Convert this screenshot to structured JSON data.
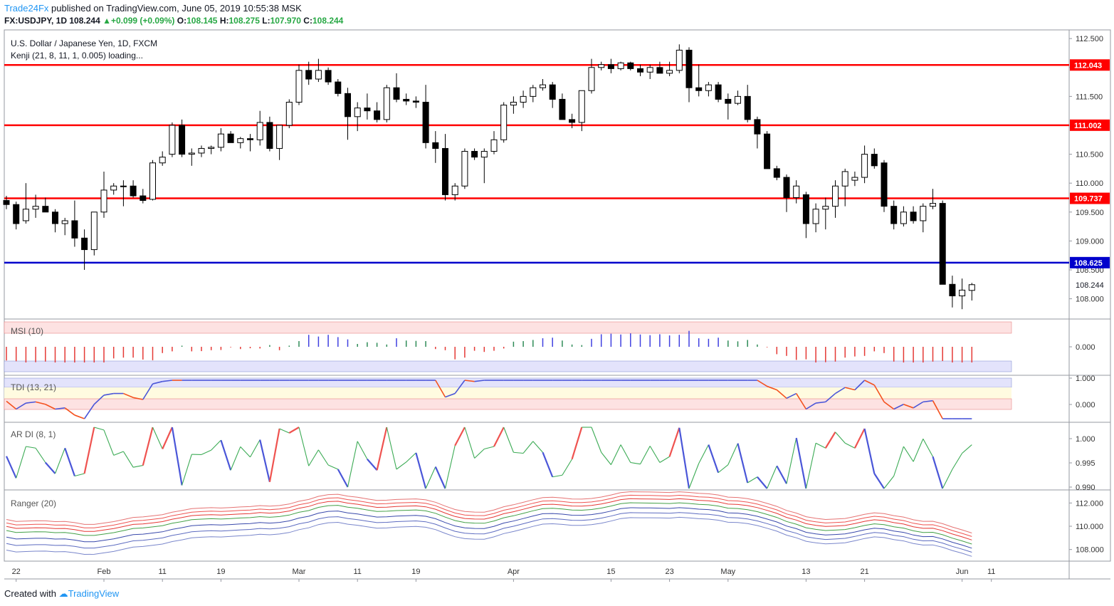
{
  "header": {
    "publisher": "Trade24Fx",
    "published_text": "published on TradingView.com, June 05, 2019 10:55:38 MSK",
    "symbol": "FX:USDJPY, 1D",
    "last": "108.244",
    "change": "+0.099 (+0.09%)",
    "open_label": "O:",
    "open": "108.145",
    "high_label": "H:",
    "high": "108.275",
    "low_label": "L:",
    "low": "107.970",
    "close_label": "C:",
    "close": "108.244"
  },
  "footer": {
    "created_with": "Created with",
    "brand": "TradingView"
  },
  "colors": {
    "bull": "#ffffff",
    "bear": "#000000",
    "resistance": "#ff0000",
    "support": "#0000cc",
    "accent": "#2196f3"
  },
  "chart_data": [
    {
      "type": "candlestick",
      "title": "U.S. Dollar / Japanese Yen, 1D, FXCM",
      "subtitle": "Kenji (21, 8, 11, 1, 0.005) loading...",
      "x_tick_labels": [
        {
          "i": 1,
          "label": "22"
        },
        {
          "i": 10,
          "label": "Feb"
        },
        {
          "i": 16,
          "label": "11"
        },
        {
          "i": 22,
          "label": "19"
        },
        {
          "i": 30,
          "label": "Mar"
        },
        {
          "i": 36,
          "label": "11"
        },
        {
          "i": 42,
          "label": "19"
        },
        {
          "i": 52,
          "label": "Apr"
        },
        {
          "i": 62,
          "label": "15"
        },
        {
          "i": 68,
          "label": "23"
        },
        {
          "i": 74,
          "label": "May"
        },
        {
          "i": 82,
          "label": "13"
        },
        {
          "i": 88,
          "label": "21"
        },
        {
          "i": 98,
          "label": "Jun"
        },
        {
          "i": 101,
          "label": "11"
        }
      ],
      "y_ticks": [
        "108.000",
        "108.500",
        "109.000",
        "109.500",
        "110.000",
        "110.500",
        "111.000",
        "111.500",
        "112.000",
        "112.500"
      ],
      "ylim": [
        107.65,
        112.65
      ],
      "levels": [
        {
          "value": 112.043,
          "label": "112.043",
          "color": "#ff0000"
        },
        {
          "value": 111.002,
          "label": "111.002",
          "color": "#ff0000"
        },
        {
          "value": 109.737,
          "label": "109.737",
          "color": "#ff0000"
        },
        {
          "value": 108.625,
          "label": "108.625",
          "color": "#0000cc"
        }
      ],
      "last_price_label": "108.244",
      "ohlc": [
        [
          109.7,
          109.78,
          109.55,
          109.63
        ],
        [
          109.63,
          109.68,
          109.2,
          109.3
        ],
        [
          109.35,
          110.0,
          109.3,
          109.55
        ],
        [
          109.55,
          109.8,
          109.4,
          109.6
        ],
        [
          109.6,
          109.75,
          109.5,
          109.5
        ],
        [
          109.5,
          109.55,
          109.15,
          109.3
        ],
        [
          109.3,
          109.4,
          109.1,
          109.35
        ],
        [
          109.35,
          109.7,
          108.9,
          109.05
        ],
        [
          109.05,
          109.2,
          108.5,
          108.85
        ],
        [
          108.85,
          109.45,
          108.75,
          109.5
        ],
        [
          109.5,
          110.2,
          109.4,
          109.88
        ],
        [
          109.88,
          110.0,
          109.8,
          109.95
        ],
        [
          109.95,
          110.05,
          109.6,
          109.95
        ],
        [
          109.95,
          110.05,
          109.75,
          109.78
        ],
        [
          109.78,
          109.9,
          109.65,
          109.7
        ],
        [
          109.72,
          110.4,
          109.7,
          110.35
        ],
        [
          110.35,
          110.55,
          110.3,
          110.45
        ],
        [
          110.5,
          111.05,
          110.45,
          111.0
        ],
        [
          111.0,
          111.1,
          110.45,
          110.5
        ],
        [
          110.5,
          110.6,
          110.3,
          110.52
        ],
        [
          110.52,
          110.65,
          110.45,
          110.6
        ],
        [
          110.6,
          110.65,
          110.5,
          110.62
        ],
        [
          110.62,
          110.95,
          110.55,
          110.85
        ],
        [
          110.85,
          110.9,
          110.7,
          110.7
        ],
        [
          110.7,
          110.8,
          110.6,
          110.77
        ],
        [
          110.77,
          110.85,
          110.55,
          110.75
        ],
        [
          110.75,
          111.25,
          110.65,
          111.05
        ],
        [
          111.05,
          111.15,
          110.55,
          110.6
        ],
        [
          110.6,
          111.0,
          110.4,
          111.0
        ],
        [
          111.0,
          111.45,
          110.95,
          111.4
        ],
        [
          111.4,
          112.05,
          111.35,
          111.95
        ],
        [
          111.95,
          112.1,
          111.7,
          111.8
        ],
        [
          111.8,
          112.15,
          111.75,
          111.95
        ],
        [
          111.95,
          112.0,
          111.7,
          111.75
        ],
        [
          111.75,
          111.8,
          111.5,
          111.55
        ],
        [
          111.55,
          111.65,
          110.75,
          111.15
        ],
        [
          111.15,
          111.4,
          110.9,
          111.3
        ],
        [
          111.3,
          111.55,
          111.1,
          111.25
        ],
        [
          111.25,
          111.4,
          111.05,
          111.1
        ],
        [
          111.1,
          111.7,
          111.05,
          111.65
        ],
        [
          111.65,
          111.9,
          111.4,
          111.45
        ],
        [
          111.45,
          111.55,
          111.35,
          111.42
        ],
        [
          111.42,
          111.5,
          111.3,
          111.4
        ],
        [
          111.4,
          111.7,
          110.6,
          110.7
        ],
        [
          110.7,
          110.9,
          110.35,
          110.6
        ],
        [
          110.6,
          110.85,
          109.7,
          109.8
        ],
        [
          109.8,
          110.0,
          109.7,
          109.95
        ],
        [
          109.95,
          110.6,
          109.9,
          110.55
        ],
        [
          110.55,
          110.6,
          110.4,
          110.45
        ],
        [
          110.45,
          110.6,
          110.0,
          110.55
        ],
        [
          110.55,
          110.9,
          110.5,
          110.75
        ],
        [
          110.75,
          111.4,
          110.7,
          111.35
        ],
        [
          111.35,
          111.5,
          111.2,
          111.4
        ],
        [
          111.4,
          111.6,
          111.3,
          111.5
        ],
        [
          111.5,
          111.7,
          111.4,
          111.65
        ],
        [
          111.65,
          111.8,
          111.6,
          111.7
        ],
        [
          111.7,
          111.75,
          111.3,
          111.45
        ],
        [
          111.45,
          111.55,
          111.1,
          111.1
        ],
        [
          111.1,
          111.2,
          110.95,
          111.05
        ],
        [
          111.05,
          111.6,
          110.9,
          111.6
        ],
        [
          111.6,
          112.15,
          111.55,
          112.0
        ],
        [
          112.0,
          112.1,
          111.95,
          112.05
        ],
        [
          112.05,
          112.15,
          111.9,
          111.98
        ],
        [
          111.98,
          112.1,
          111.95,
          112.08
        ],
        [
          112.08,
          112.1,
          111.95,
          111.98
        ],
        [
          111.98,
          112.05,
          111.85,
          111.92
        ],
        [
          111.92,
          112.05,
          111.8,
          112.0
        ],
        [
          112.0,
          112.1,
          111.9,
          111.9
        ],
        [
          111.9,
          112.1,
          111.85,
          111.95
        ],
        [
          111.95,
          112.4,
          111.9,
          112.3
        ],
        [
          112.3,
          112.35,
          111.4,
          111.65
        ],
        [
          111.65,
          112.05,
          111.5,
          111.6
        ],
        [
          111.6,
          111.75,
          111.5,
          111.7
        ],
        [
          111.7,
          111.75,
          111.4,
          111.45
        ],
        [
          111.45,
          111.55,
          111.1,
          111.38
        ],
        [
          111.38,
          111.6,
          111.35,
          111.5
        ],
        [
          111.5,
          111.7,
          111.05,
          111.1
        ],
        [
          111.1,
          111.15,
          110.6,
          110.85
        ],
        [
          110.85,
          110.9,
          110.3,
          110.25
        ],
        [
          110.25,
          110.3,
          110.05,
          110.1
        ],
        [
          110.1,
          110.15,
          109.5,
          109.75
        ],
        [
          109.75,
          110.05,
          109.65,
          109.95
        ],
        [
          109.8,
          109.85,
          109.05,
          109.3
        ],
        [
          109.3,
          109.65,
          109.15,
          109.55
        ],
        [
          109.55,
          109.75,
          109.2,
          109.6
        ],
        [
          109.6,
          110.05,
          109.4,
          109.95
        ],
        [
          109.95,
          110.25,
          109.6,
          110.2
        ],
        [
          110.05,
          110.2,
          109.95,
          110.1
        ],
        [
          110.1,
          110.65,
          110.0,
          110.5
        ],
        [
          110.5,
          110.6,
          110.25,
          110.3
        ],
        [
          110.35,
          110.4,
          109.5,
          109.6
        ],
        [
          109.6,
          109.7,
          109.2,
          109.3
        ],
        [
          109.3,
          109.6,
          109.25,
          109.5
        ],
        [
          109.5,
          109.6,
          109.3,
          109.35
        ],
        [
          109.35,
          109.65,
          109.15,
          109.6
        ],
        [
          109.6,
          109.9,
          109.55,
          109.65
        ],
        [
          109.65,
          109.7,
          108.25,
          108.25
        ],
        [
          108.25,
          108.4,
          107.85,
          108.05
        ],
        [
          108.05,
          108.35,
          107.82,
          108.15
        ],
        [
          108.145,
          108.275,
          107.97,
          108.244
        ]
      ]
    },
    {
      "type": "bar",
      "title": "MSI (10)",
      "y_ticks": [
        "0.000"
      ],
      "ylim": [
        -1.0,
        1.0
      ],
      "pattern": "msi"
    },
    {
      "type": "line",
      "title": "TDI (13, 21)",
      "y_ticks": [
        "1.000",
        "0.000"
      ],
      "ylim": [
        -0.2,
        1.1
      ]
    },
    {
      "type": "line",
      "title": "AR DI (8, 1)",
      "y_ticks": [
        "1.000",
        "0.995",
        "0.990"
      ],
      "ylim": [
        0.988,
        1.003
      ]
    },
    {
      "type": "line",
      "title": "Ranger (20)",
      "y_ticks": [
        "112.000",
        "110.000",
        "108.000"
      ],
      "ylim": [
        107.0,
        113.0
      ]
    }
  ]
}
